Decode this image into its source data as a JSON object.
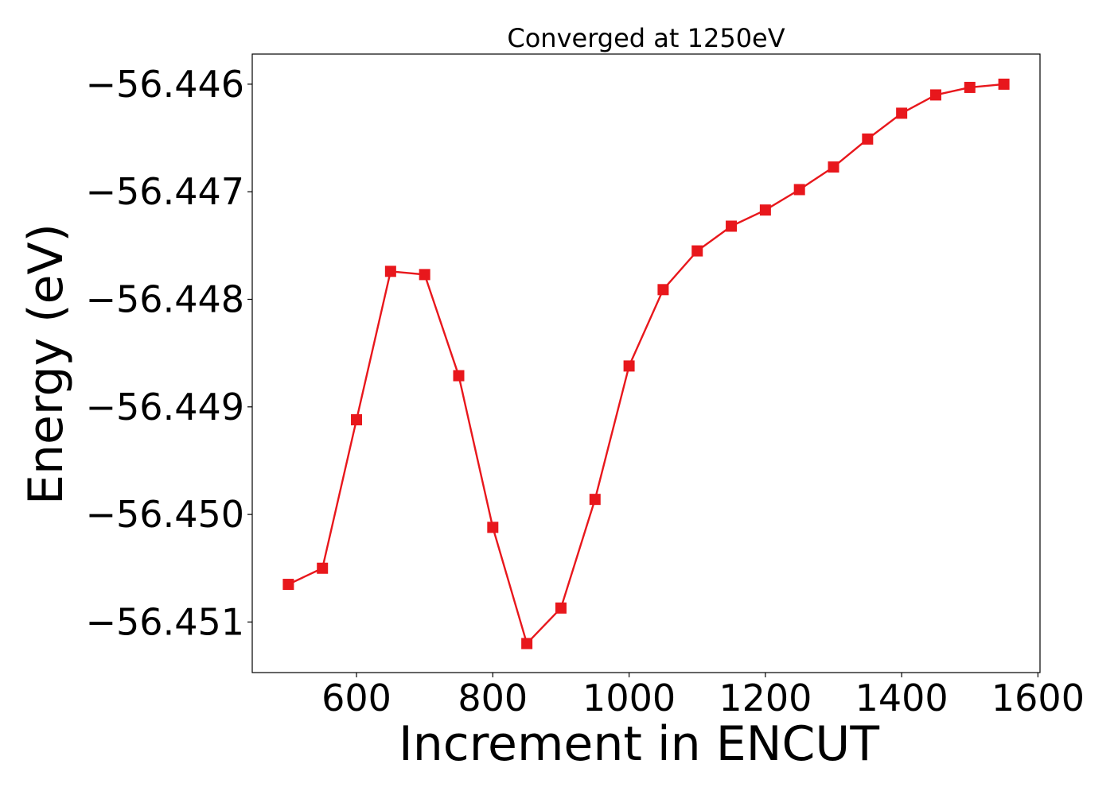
{
  "chart_data": {
    "type": "line",
    "title": "Converged at 1250eV",
    "xlabel": "Increment in ENCUT",
    "ylabel": "Energy (eV)",
    "xlim": [
      447,
      1603
    ],
    "ylim": [
      -56.45147,
      -56.44572
    ],
    "xticks": [
      600,
      800,
      1000,
      1200,
      1400,
      1600
    ],
    "xtick_labels": [
      "600",
      "800",
      "1000",
      "1200",
      "1400",
      "1600"
    ],
    "yticks": [
      -56.446,
      -56.447,
      -56.448,
      -56.449,
      -56.45,
      -56.451
    ],
    "ytick_labels": [
      "−56.446",
      "−56.447",
      "−56.448",
      "−56.449",
      "−56.450",
      "−56.451"
    ],
    "grid": false,
    "legend": "none",
    "series": [
      {
        "color": "#e8171c",
        "marker": "square",
        "x": [
          500,
          550,
          600,
          650,
          700,
          750,
          800,
          850,
          900,
          950,
          1000,
          1050,
          1100,
          1150,
          1200,
          1250,
          1300,
          1350,
          1400,
          1450,
          1500,
          1550
        ],
        "y": [
          -56.45065,
          -56.4505,
          -56.44912,
          -56.44774,
          -56.44777,
          -56.44871,
          -56.45012,
          -56.4512,
          -56.45087,
          -56.44986,
          -56.44862,
          -56.44791,
          -56.44755,
          -56.44732,
          -56.44717,
          -56.44698,
          -56.44677,
          -56.44651,
          -56.44627,
          -56.4461,
          -56.44603,
          -56.446
        ]
      }
    ]
  }
}
